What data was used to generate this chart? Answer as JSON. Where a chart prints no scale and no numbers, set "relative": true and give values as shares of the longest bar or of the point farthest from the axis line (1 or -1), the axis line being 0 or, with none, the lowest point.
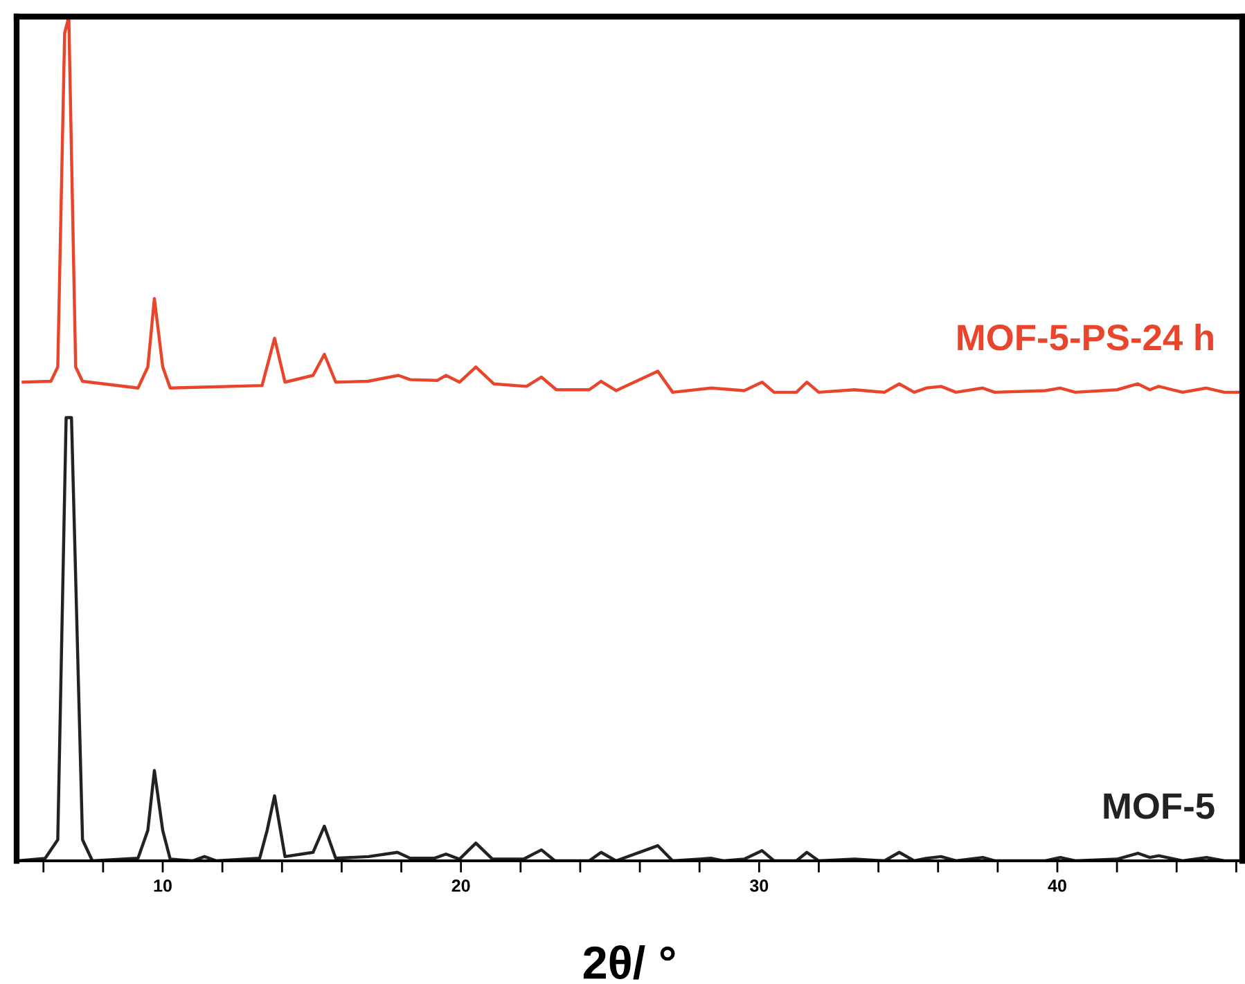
{
  "chart_data": {
    "type": "line",
    "relative": true,
    "xlabel": "2θ/ °",
    "xlim": [
      5.1,
      46.2
    ],
    "xticks": [
      {
        "value": 6,
        "label": null
      },
      {
        "value": 8,
        "label": null
      },
      10,
      {
        "value": 12,
        "label": null
      },
      {
        "value": 14,
        "label": null
      },
      {
        "value": 16,
        "label": null
      },
      {
        "value": 18,
        "label": null
      },
      20,
      {
        "value": 22,
        "label": null
      },
      {
        "value": 24,
        "label": null
      },
      {
        "value": 26,
        "label": null
      },
      {
        "value": 28,
        "label": null
      },
      30,
      {
        "value": 32,
        "label": null
      },
      {
        "value": 34,
        "label": null
      },
      {
        "value": 36,
        "label": null
      },
      {
        "value": 38,
        "label": null
      },
      40,
      {
        "value": 42,
        "label": null
      },
      {
        "value": 44,
        "label": null
      },
      {
        "value": 46,
        "label": null
      }
    ],
    "grid": false,
    "legend": false,
    "marker": "none",
    "line_style": "solid",
    "series": [
      {
        "name": "MOF-5-PS-24 h",
        "color": "#e8452c",
        "x": [
          5.32,
          6.25,
          6.48,
          6.71,
          6.85,
          7.08,
          7.31,
          9.17,
          9.5,
          9.72,
          10.0,
          10.25,
          13.33,
          13.75,
          14.1,
          15.04,
          15.42,
          15.8,
          16.88,
          17.9,
          18.3,
          19.2,
          19.5,
          19.95,
          20.5,
          21.1,
          22.2,
          22.7,
          23.2,
          24.3,
          24.7,
          25.2,
          26.6,
          27.1,
          28.4,
          29.5,
          30.1,
          30.5,
          31.25,
          31.6,
          32.0,
          33.2,
          34.2,
          34.7,
          35.2,
          35.6,
          36.1,
          36.6,
          37.5,
          37.9,
          39.6,
          40.1,
          40.6,
          42.0,
          42.7,
          43.1,
          43.4,
          44.2,
          45.0,
          45.6,
          46.2
        ],
        "values": [
          0.567,
          0.568,
          0.585,
          0.98,
          1.0,
          0.585,
          0.568,
          0.56,
          0.585,
          0.666,
          0.585,
          0.56,
          0.563,
          0.619,
          0.567,
          0.575,
          0.6,
          0.567,
          0.568,
          0.575,
          0.57,
          0.569,
          0.575,
          0.567,
          0.585,
          0.565,
          0.562,
          0.573,
          0.558,
          0.558,
          0.568,
          0.557,
          0.58,
          0.555,
          0.56,
          0.557,
          0.567,
          0.555,
          0.555,
          0.567,
          0.555,
          0.558,
          0.555,
          0.565,
          0.555,
          0.56,
          0.562,
          0.555,
          0.56,
          0.555,
          0.557,
          0.56,
          0.555,
          0.558,
          0.565,
          0.558,
          0.562,
          0.555,
          0.56,
          0.555,
          0.555
        ]
      },
      {
        "name": "MOF-5",
        "color": "#222222",
        "x": [
          5.14,
          6.06,
          6.48,
          6.76,
          6.94,
          7.31,
          7.64,
          9.17,
          9.5,
          9.72,
          10.0,
          10.25,
          11.0,
          11.4,
          11.8,
          13.25,
          13.5,
          13.75,
          14.1,
          15.04,
          15.42,
          15.8,
          16.9,
          17.87,
          18.3,
          19.1,
          19.5,
          19.95,
          20.5,
          21.06,
          22.1,
          22.7,
          23.15,
          24.3,
          24.7,
          25.2,
          26.6,
          27.1,
          28.4,
          28.8,
          29.5,
          30.1,
          30.5,
          31.25,
          31.6,
          32.0,
          33.2,
          34.2,
          34.7,
          35.2,
          35.6,
          36.1,
          36.6,
          37.5,
          37.9,
          39.6,
          40.1,
          40.6,
          42.0,
          42.7,
          43.1,
          43.4,
          44.2,
          45.0,
          45.6,
          46.2
        ],
        "values": [
          0.0,
          0.003,
          0.025,
          0.525,
          0.525,
          0.025,
          0.0,
          0.003,
          0.036,
          0.107,
          0.036,
          0.002,
          0.0,
          0.005,
          0.0,
          0.003,
          0.036,
          0.077,
          0.005,
          0.01,
          0.041,
          0.003,
          0.005,
          0.01,
          0.003,
          0.003,
          0.008,
          0.002,
          0.021,
          0.002,
          0.002,
          0.013,
          0.0,
          0.0,
          0.01,
          0.0,
          0.018,
          0.0,
          0.003,
          0.0,
          0.002,
          0.012,
          0.0,
          0.0,
          0.01,
          0.0,
          0.002,
          0.0,
          0.01,
          0.0,
          0.003,
          0.005,
          0.0,
          0.004,
          0.0,
          0.0,
          0.004,
          0.0,
          0.002,
          0.009,
          0.004,
          0.006,
          0.0,
          0.004,
          0.0,
          0.0
        ]
      }
    ]
  }
}
